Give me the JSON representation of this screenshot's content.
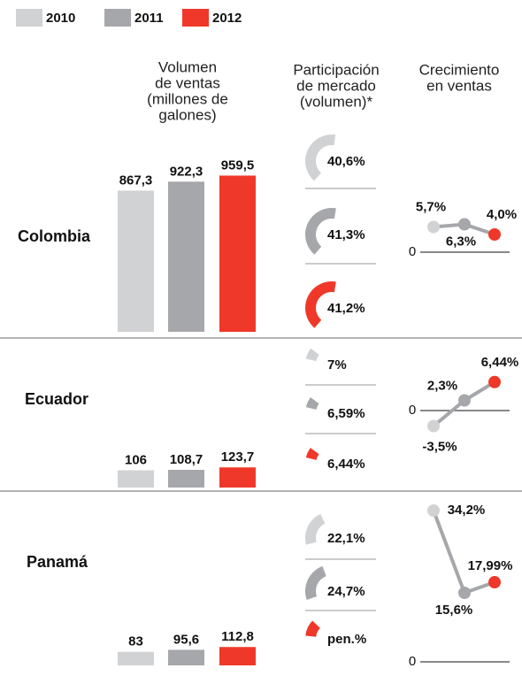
{
  "chart_data": {
    "type": "bar",
    "series": [
      {
        "name": "2010",
        "color": "#d1d2d4"
      },
      {
        "name": "2011",
        "color": "#a6a7aa"
      },
      {
        "name": "2012",
        "color": "#ef3829"
      }
    ],
    "headers": {
      "volume": [
        "Volumen",
        "de ventas",
        "(millones de",
        "galones)"
      ],
      "share": [
        "Participación",
        "de mercado",
        "(volumen)*"
      ],
      "growth": [
        "Crecimiento",
        "en ventas"
      ]
    },
    "growth_yticks": [
      0
    ],
    "countries": [
      {
        "name": "Colombia",
        "volume": {
          "values": [
            867.3,
            922.3,
            959.5
          ],
          "value_labels": [
            "867,3",
            "922,3",
            "959,5"
          ]
        },
        "share": {
          "values": [
            40.6,
            41.3,
            41.2
          ],
          "value_labels": [
            "40,6%",
            "41,3%",
            "41,2%"
          ]
        },
        "growth": {
          "values": [
            5.7,
            6.3,
            4.0
          ],
          "value_labels": [
            "5,7%",
            "6,3%",
            "4,0%"
          ]
        }
      },
      {
        "name": "Ecuador",
        "volume": {
          "values": [
            106,
            108.7,
            123.7
          ],
          "value_labels": [
            "106",
            "108,7",
            "123,7"
          ]
        },
        "share": {
          "values": [
            7,
            6.59,
            6.44
          ],
          "value_labels": [
            "7%",
            "6,59%",
            "6,44%"
          ]
        },
        "growth": {
          "values": [
            -3.5,
            2.3,
            6.44
          ],
          "value_labels": [
            "-3,5%",
            "2,3%",
            "6,44%"
          ]
        }
      },
      {
        "name": "Panamá",
        "volume": {
          "values": [
            83,
            95.6,
            112.8
          ],
          "value_labels": [
            "83",
            "95,6",
            "112,8"
          ]
        },
        "share": {
          "values": [
            22.1,
            24.7,
            10
          ],
          "value_labels": [
            "22,1%",
            "24,7%",
            "pen.%"
          ]
        },
        "growth": {
          "values": [
            34.2,
            15.6,
            17.99
          ],
          "value_labels": [
            "34,2%",
            "15,6%",
            "17,99%"
          ]
        }
      }
    ]
  }
}
